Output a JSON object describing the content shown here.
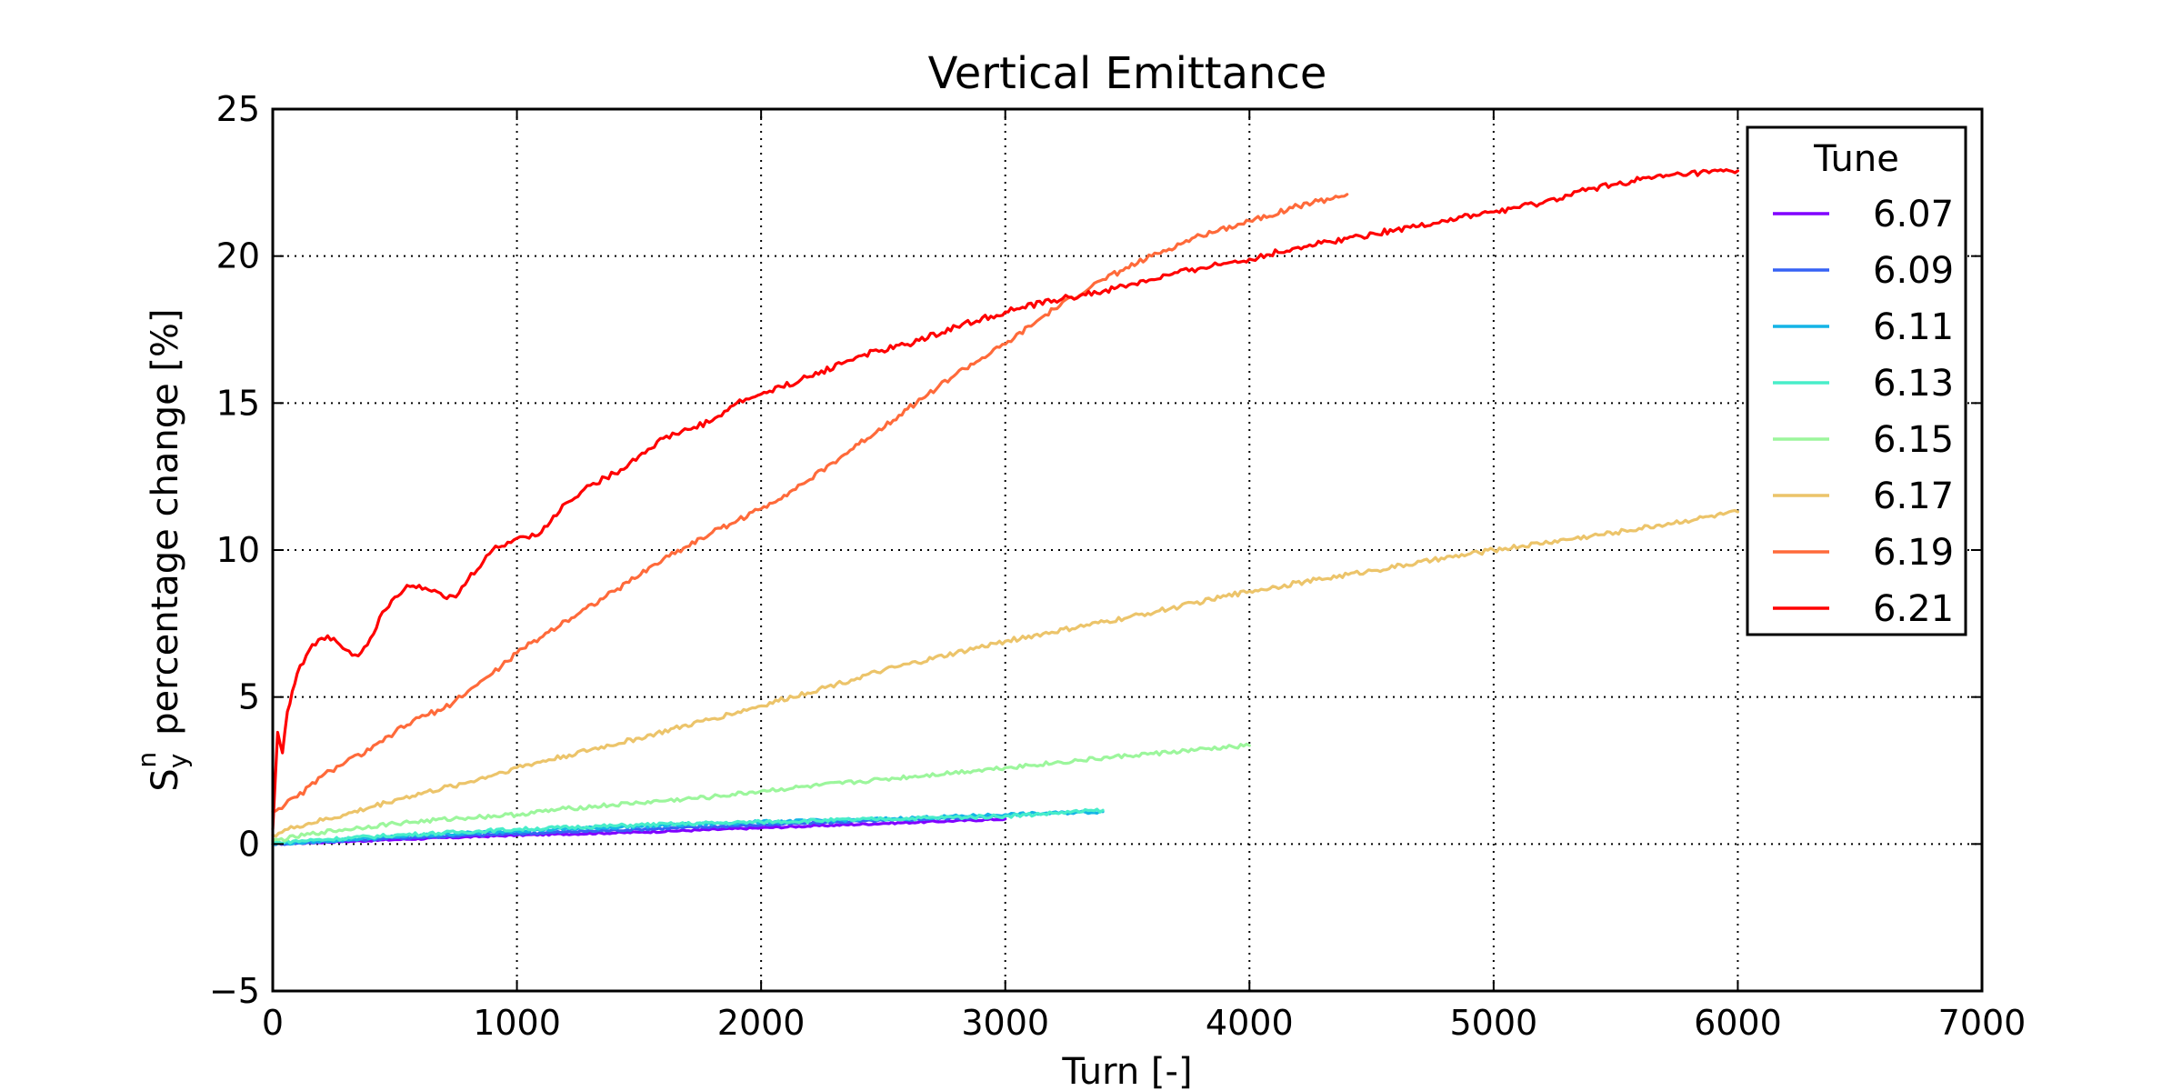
{
  "chart_data": {
    "type": "line",
    "title": "Vertical Emittance",
    "xlabel": "Turn [-]",
    "ylabel": {
      "symbol": "S",
      "subscript": "y",
      "superscript": "n",
      "text": "percentage change [%]"
    },
    "xlim": [
      0,
      7000
    ],
    "ylim": [
      -5,
      25
    ],
    "xticks": [
      0,
      1000,
      2000,
      3000,
      4000,
      5000,
      6000,
      7000
    ],
    "yticks": [
      -5,
      0,
      5,
      10,
      15,
      20,
      25
    ],
    "xtick_labels": [
      "0",
      "1000",
      "2000",
      "3000",
      "4000",
      "5000",
      "6000",
      "7000"
    ],
    "ytick_labels": [
      "−5",
      "0",
      "5",
      "10",
      "15",
      "20",
      "25"
    ],
    "grid": true,
    "legend": {
      "title": "Tune",
      "position": "top-right"
    },
    "series": [
      {
        "name": "6.07",
        "color": "#8000ff",
        "x": [
          0,
          500,
          1000,
          1500,
          2000,
          2500,
          3000
        ],
        "y": [
          0,
          0.15,
          0.3,
          0.4,
          0.55,
          0.7,
          0.85
        ]
      },
      {
        "name": "6.09",
        "color": "#3662f5",
        "x": [
          0,
          500,
          1000,
          1500,
          2000,
          2500,
          3000
        ],
        "y": [
          0,
          0.2,
          0.35,
          0.5,
          0.65,
          0.8,
          0.95
        ]
      },
      {
        "name": "6.11",
        "color": "#14b4e6",
        "x": [
          0,
          500,
          1000,
          1500,
          2000,
          2500,
          3000,
          3400
        ],
        "y": [
          0,
          0.25,
          0.45,
          0.6,
          0.75,
          0.85,
          1.0,
          1.1
        ]
      },
      {
        "name": "6.13",
        "color": "#48edc9",
        "x": [
          0,
          500,
          1000,
          1500,
          2000,
          2500,
          3000,
          3400
        ],
        "y": [
          0.05,
          0.3,
          0.5,
          0.65,
          0.75,
          0.85,
          0.95,
          1.15
        ]
      },
      {
        "name": "6.15",
        "color": "#9cf69c",
        "x": [
          0,
          200,
          500,
          800,
          1000,
          1200,
          1500,
          1800,
          2000,
          2500,
          3000,
          3500,
          4000
        ],
        "y": [
          0.1,
          0.4,
          0.7,
          0.9,
          1.0,
          1.2,
          1.4,
          1.6,
          1.8,
          2.2,
          2.6,
          3.0,
          3.35
        ]
      },
      {
        "name": "6.17",
        "color": "#ecc46a",
        "x": [
          0,
          100,
          300,
          500,
          800,
          1000,
          1500,
          2000,
          2500,
          3000,
          3500,
          4000,
          4500,
          5000,
          5500,
          6000
        ],
        "y": [
          0.3,
          0.6,
          1.0,
          1.5,
          2.1,
          2.6,
          3.6,
          4.7,
          5.9,
          6.9,
          7.7,
          8.6,
          9.3,
          10.0,
          10.6,
          11.3
        ]
      },
      {
        "name": "6.19",
        "color": "#ff6a3a",
        "x": [
          0,
          100,
          200,
          300,
          400,
          500,
          600,
          700,
          800,
          900,
          1000,
          1200,
          1400,
          1600,
          1800,
          2000,
          2200,
          2400,
          2600,
          2800,
          3000,
          3200,
          3400,
          3600,
          3800,
          4000,
          4200,
          4400
        ],
        "y": [
          1.1,
          1.6,
          2.3,
          2.8,
          3.2,
          3.8,
          4.3,
          4.6,
          5.2,
          5.8,
          6.5,
          7.6,
          8.6,
          9.7,
          10.6,
          11.4,
          12.4,
          13.6,
          14.8,
          16.0,
          17.0,
          18.2,
          19.2,
          20.0,
          20.7,
          21.2,
          21.7,
          22.1
        ]
      },
      {
        "name": "6.21",
        "color": "#ff0000",
        "x": [
          0,
          20,
          40,
          60,
          80,
          100,
          150,
          200,
          250,
          300,
          350,
          400,
          450,
          500,
          550,
          600,
          650,
          700,
          750,
          800,
          900,
          1000,
          1100,
          1200,
          1300,
          1400,
          1500,
          1600,
          1700,
          1800,
          1900,
          2000,
          2200,
          2400,
          2600,
          2800,
          3000,
          3200,
          3400,
          3600,
          3800,
          4000,
          4200,
          4400,
          4600,
          4800,
          5000,
          5200,
          5400,
          5600,
          5800,
          6000
        ],
        "y": [
          0.5,
          3.8,
          3.1,
          4.5,
          5.2,
          5.8,
          6.6,
          7.0,
          7.0,
          6.6,
          6.4,
          7.0,
          7.9,
          8.4,
          8.8,
          8.8,
          8.6,
          8.4,
          8.4,
          9.0,
          10.0,
          10.4,
          10.6,
          11.6,
          12.2,
          12.6,
          13.2,
          13.8,
          14.1,
          14.4,
          15.0,
          15.3,
          15.9,
          16.6,
          17.0,
          17.6,
          18.1,
          18.5,
          18.8,
          19.2,
          19.6,
          19.9,
          20.3,
          20.6,
          20.9,
          21.2,
          21.5,
          21.8,
          22.3,
          22.6,
          22.8,
          22.9
        ]
      }
    ]
  }
}
